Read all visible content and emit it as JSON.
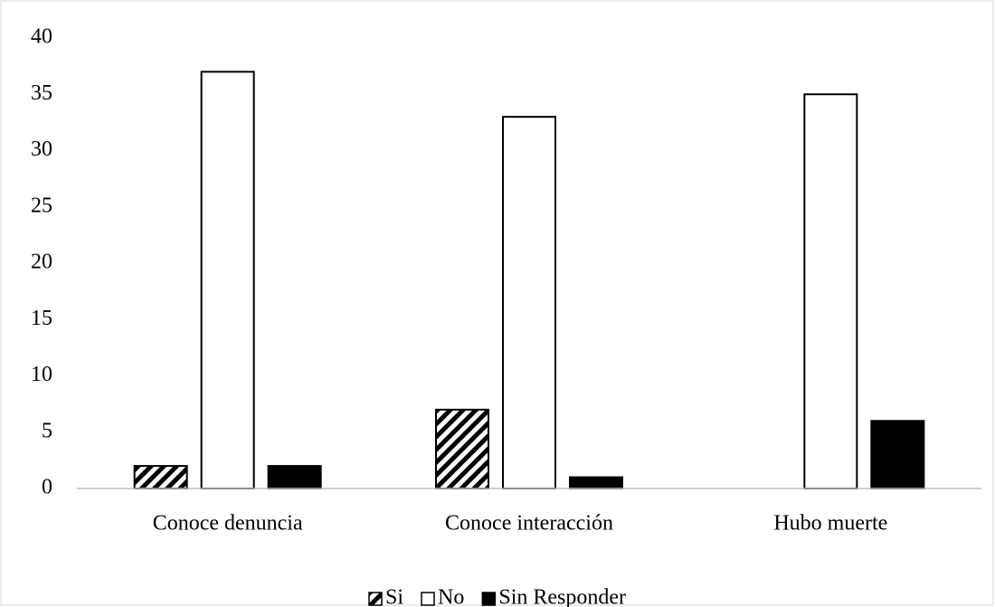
{
  "chart_data": {
    "type": "bar",
    "categories": [
      "Conoce denuncia",
      "Conoce interacción",
      "Hubo muerte"
    ],
    "series": [
      {
        "name": "Si",
        "color": "#000000",
        "pattern": "diagonal",
        "values": [
          2,
          7,
          0
        ]
      },
      {
        "name": "No",
        "color": "#ffffff",
        "pattern": "solid",
        "values": [
          37,
          33,
          35
        ]
      },
      {
        "name": "Sin Responder",
        "color": "#000000",
        "pattern": "solid",
        "values": [
          2,
          1,
          6
        ]
      }
    ],
    "ylim": [
      0,
      40
    ],
    "yticks": [
      0,
      5,
      10,
      15,
      20,
      25,
      30,
      35,
      40
    ],
    "grid": false,
    "legend": "bottom"
  }
}
